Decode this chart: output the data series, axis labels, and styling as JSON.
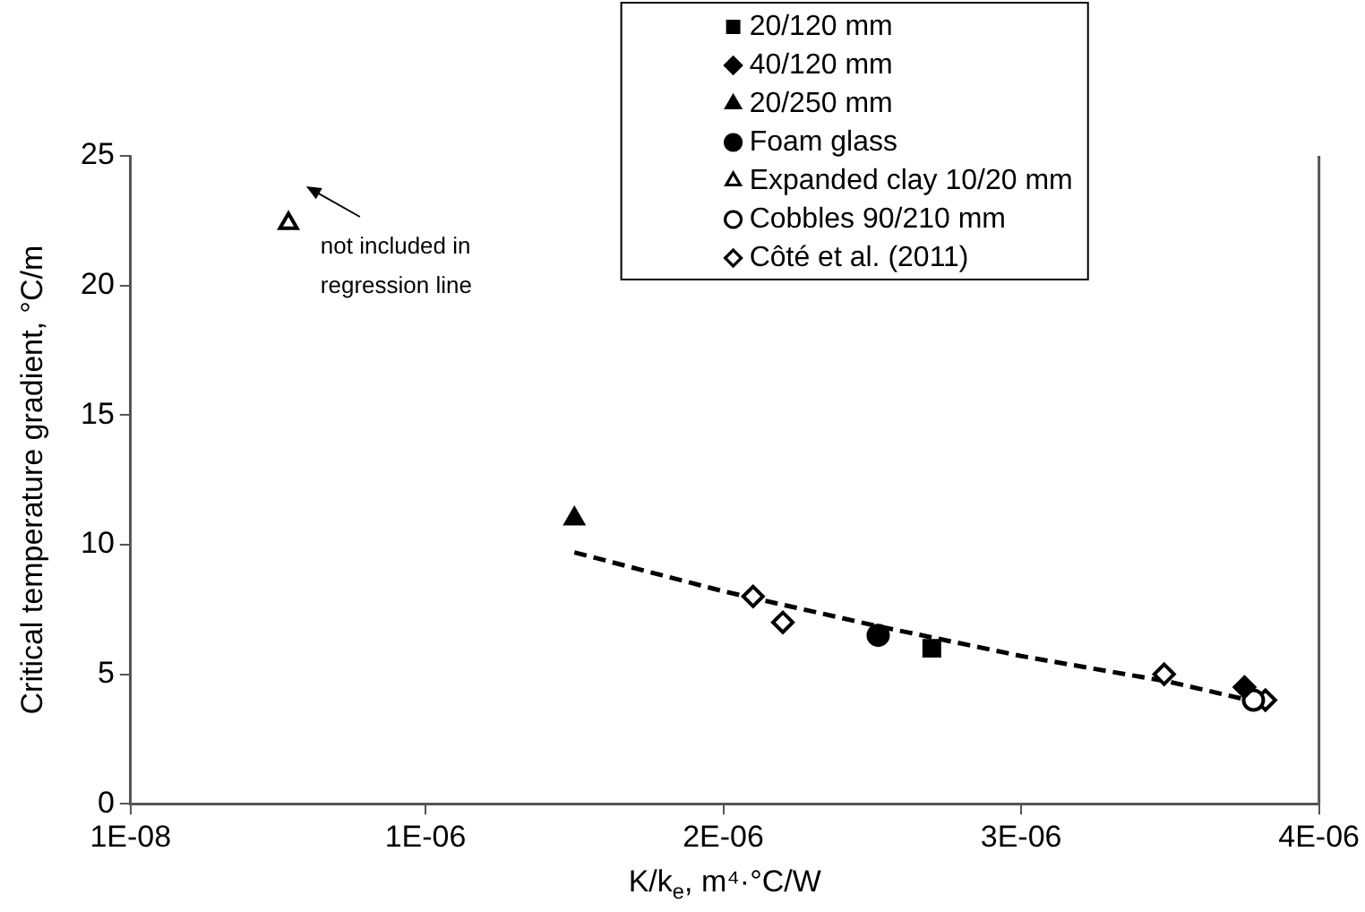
{
  "chart_data": {
    "type": "scatter",
    "xlabel": "K/k$_{e}$, m⁴·°C/W",
    "ylabel": "Critical temperature gradient, °C/m",
    "xlim": [
      1e-08,
      4e-06
    ],
    "xticks": [
      {
        "value": 1e-08,
        "label": "1E-08"
      },
      {
        "value": 1e-06,
        "label": "1E-06"
      },
      {
        "value": 2e-06,
        "label": "2E-06"
      },
      {
        "value": 3e-06,
        "label": "3E-06"
      },
      {
        "value": 4e-06,
        "label": "4E-06"
      }
    ],
    "ylim": [
      0,
      25
    ],
    "yticks": [
      0,
      5,
      10,
      15,
      20,
      25
    ],
    "grid": false,
    "legend": "top right",
    "series": [
      {
        "name": "20/120 mm",
        "color": "#000000",
        "marker": "square",
        "x": [
          2.7e-06
        ],
        "values": [
          6.0
        ]
      },
      {
        "name": "40/120 mm",
        "color": "#000000",
        "marker": "diamond",
        "x": [
          3.75e-06
        ],
        "values": [
          4.5
        ]
      },
      {
        "name": "20/250 mm",
        "color": "#000000",
        "marker": "triangle",
        "x": [
          1.5e-06
        ],
        "values": [
          11.0
        ]
      },
      {
        "name": "Foam glass",
        "color": "#000000",
        "marker": "circle",
        "x": [
          2.52e-06
        ],
        "values": [
          6.5
        ]
      },
      {
        "name": "Expanded clay 10/20 mm",
        "color": "#ffffff",
        "marker": "triangle",
        "x": [
          5.4e-07
        ],
        "values": [
          22.4
        ]
      },
      {
        "name": "Cobbles 90/210 mm",
        "color": "#ffffff",
        "marker": "circle",
        "x": [
          3.78e-06
        ],
        "values": [
          4.0
        ]
      },
      {
        "name": "Côté et al. (2011)",
        "color": "#ffffff",
        "marker": "diamond",
        "x": [
          2.1e-06,
          2.2e-06,
          3.48e-06,
          3.82e-06
        ],
        "values": [
          8.0,
          7.0,
          5.0,
          4.0
        ]
      },
      {
        "type": "line",
        "color": "#000000",
        "marker": "none",
        "line_style": "dashed",
        "x": [
          1.5e-06,
          2e-06,
          2.5e-06,
          3e-06,
          3.5e-06,
          3.8e-06
        ],
        "values": [
          9.7,
          8.2,
          6.9,
          5.7,
          4.7,
          3.9
        ]
      }
    ],
    "annotations": [
      "not included in regression line"
    ]
  }
}
